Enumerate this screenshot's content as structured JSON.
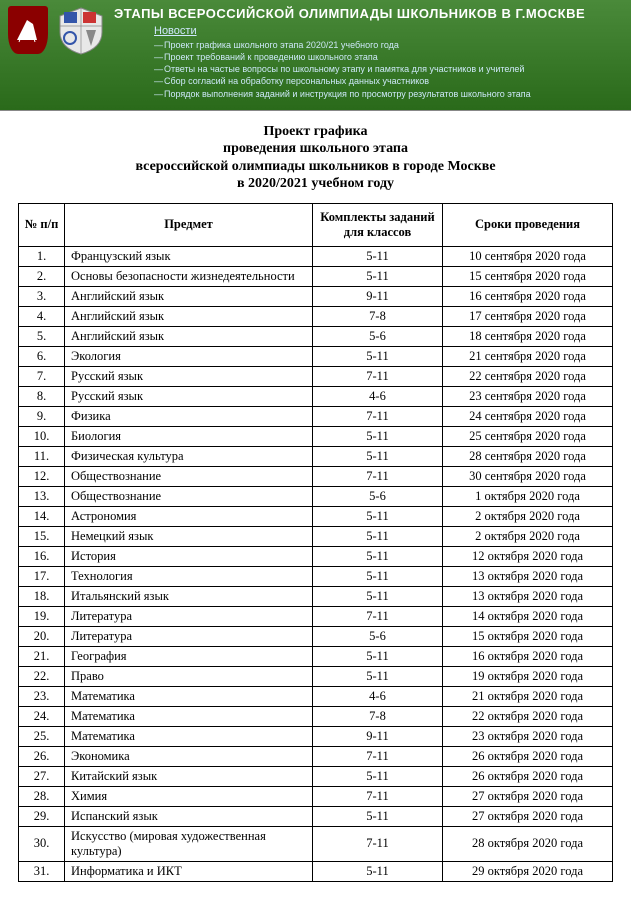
{
  "header": {
    "title": "ЭТАПЫ ВСЕРОССИЙСКОЙ ОЛИМПИАДЫ ШКОЛЬНИКОВ В Г.МОСКВЕ",
    "news_heading": "Новости",
    "news_items": [
      "Проект графика школьного этапа 2020/21 учебного года",
      "Проект требований к проведению школьного этапа",
      "Ответы на частые вопросы по школьному этапу и памятка для участников и учителей",
      "Сбор согласий на обработку персональных данных участников",
      "Порядок выполнения заданий и инструкция по просмотру результатов школьного этапа"
    ]
  },
  "document": {
    "title_line1": "Проект графика",
    "title_line2": "проведения школьного этапа",
    "title_line3": "всероссийской олимпиады школьников в городе Москве",
    "title_line4": "в 2020/2021 учебном году"
  },
  "table": {
    "columns": [
      "№ п/п",
      "Предмет",
      "Комплекты заданий для классов",
      "Сроки проведения"
    ],
    "rows": [
      [
        "1.",
        "Французский язык",
        "5-11",
        "10 сентября 2020 года"
      ],
      [
        "2.",
        "Основы безопасности жизнедеятельности",
        "5-11",
        "15 сентября 2020 года"
      ],
      [
        "3.",
        "Английский язык",
        "9-11",
        "16 сентября 2020 года"
      ],
      [
        "4.",
        "Английский язык",
        "7-8",
        "17 сентября 2020 года"
      ],
      [
        "5.",
        "Английский язык",
        "5-6",
        "18 сентября 2020 года"
      ],
      [
        "6.",
        "Экология",
        "5-11",
        "21 сентября 2020 года"
      ],
      [
        "7.",
        "Русский язык",
        "7-11",
        "22 сентября 2020 года"
      ],
      [
        "8.",
        "Русский язык",
        "4-6",
        "23 сентября 2020 года"
      ],
      [
        "9.",
        "Физика",
        "7-11",
        "24 сентября 2020 года"
      ],
      [
        "10.",
        "Биология",
        "5-11",
        "25 сентября 2020 года"
      ],
      [
        "11.",
        "Физическая культура",
        "5-11",
        "28 сентября 2020 года"
      ],
      [
        "12.",
        "Обществознание",
        "7-11",
        "30 сентября 2020 года"
      ],
      [
        "13.",
        "Обществознание",
        "5-6",
        "1 октября 2020 года"
      ],
      [
        "14.",
        "Астрономия",
        "5-11",
        "2 октября 2020 года"
      ],
      [
        "15.",
        "Немецкий язык",
        "5-11",
        "2 октября 2020 года"
      ],
      [
        "16.",
        "История",
        "5-11",
        "12 октября 2020 года"
      ],
      [
        "17.",
        "Технология",
        "5-11",
        "13 октября 2020 года"
      ],
      [
        "18.",
        "Итальянский язык",
        "5-11",
        "13 октября 2020 года"
      ],
      [
        "19.",
        "Литература",
        "7-11",
        "14 октября 2020 года"
      ],
      [
        "20.",
        "Литература",
        "5-6",
        "15 октября 2020 года"
      ],
      [
        "21.",
        "География",
        "5-11",
        "16 октября 2020 года"
      ],
      [
        "22.",
        "Право",
        "5-11",
        "19 октября 2020 года"
      ],
      [
        "23.",
        "Математика",
        "4-6",
        "21 октября 2020 года"
      ],
      [
        "24.",
        "Математика",
        "7-8",
        "22 октября 2020 года"
      ],
      [
        "25.",
        "Математика",
        "9-11",
        "23 октября 2020 года"
      ],
      [
        "26.",
        "Экономика",
        "7-11",
        "26 октября 2020 года"
      ],
      [
        "27.",
        "Китайский язык",
        "5-11",
        "26 октября 2020 года"
      ],
      [
        "28.",
        "Химия",
        "7-11",
        "27 октября 2020 года"
      ],
      [
        "29.",
        "Испанский язык",
        "5-11",
        "27 октября 2020 года"
      ],
      [
        "30.",
        "Искусство (мировая художественная культура)",
        "7-11",
        "28 октября 2020 года"
      ],
      [
        "31.",
        "Информатика и ИКТ",
        "5-11",
        "29 октября 2020 года"
      ]
    ]
  },
  "colors": {
    "header_bg_top": "#4a8a3a",
    "header_bg_bottom": "#2a6a1a",
    "page_bg": "#ffffff",
    "body_bg": "#eeeeee",
    "text": "#000000",
    "link": "#cde8f8"
  }
}
